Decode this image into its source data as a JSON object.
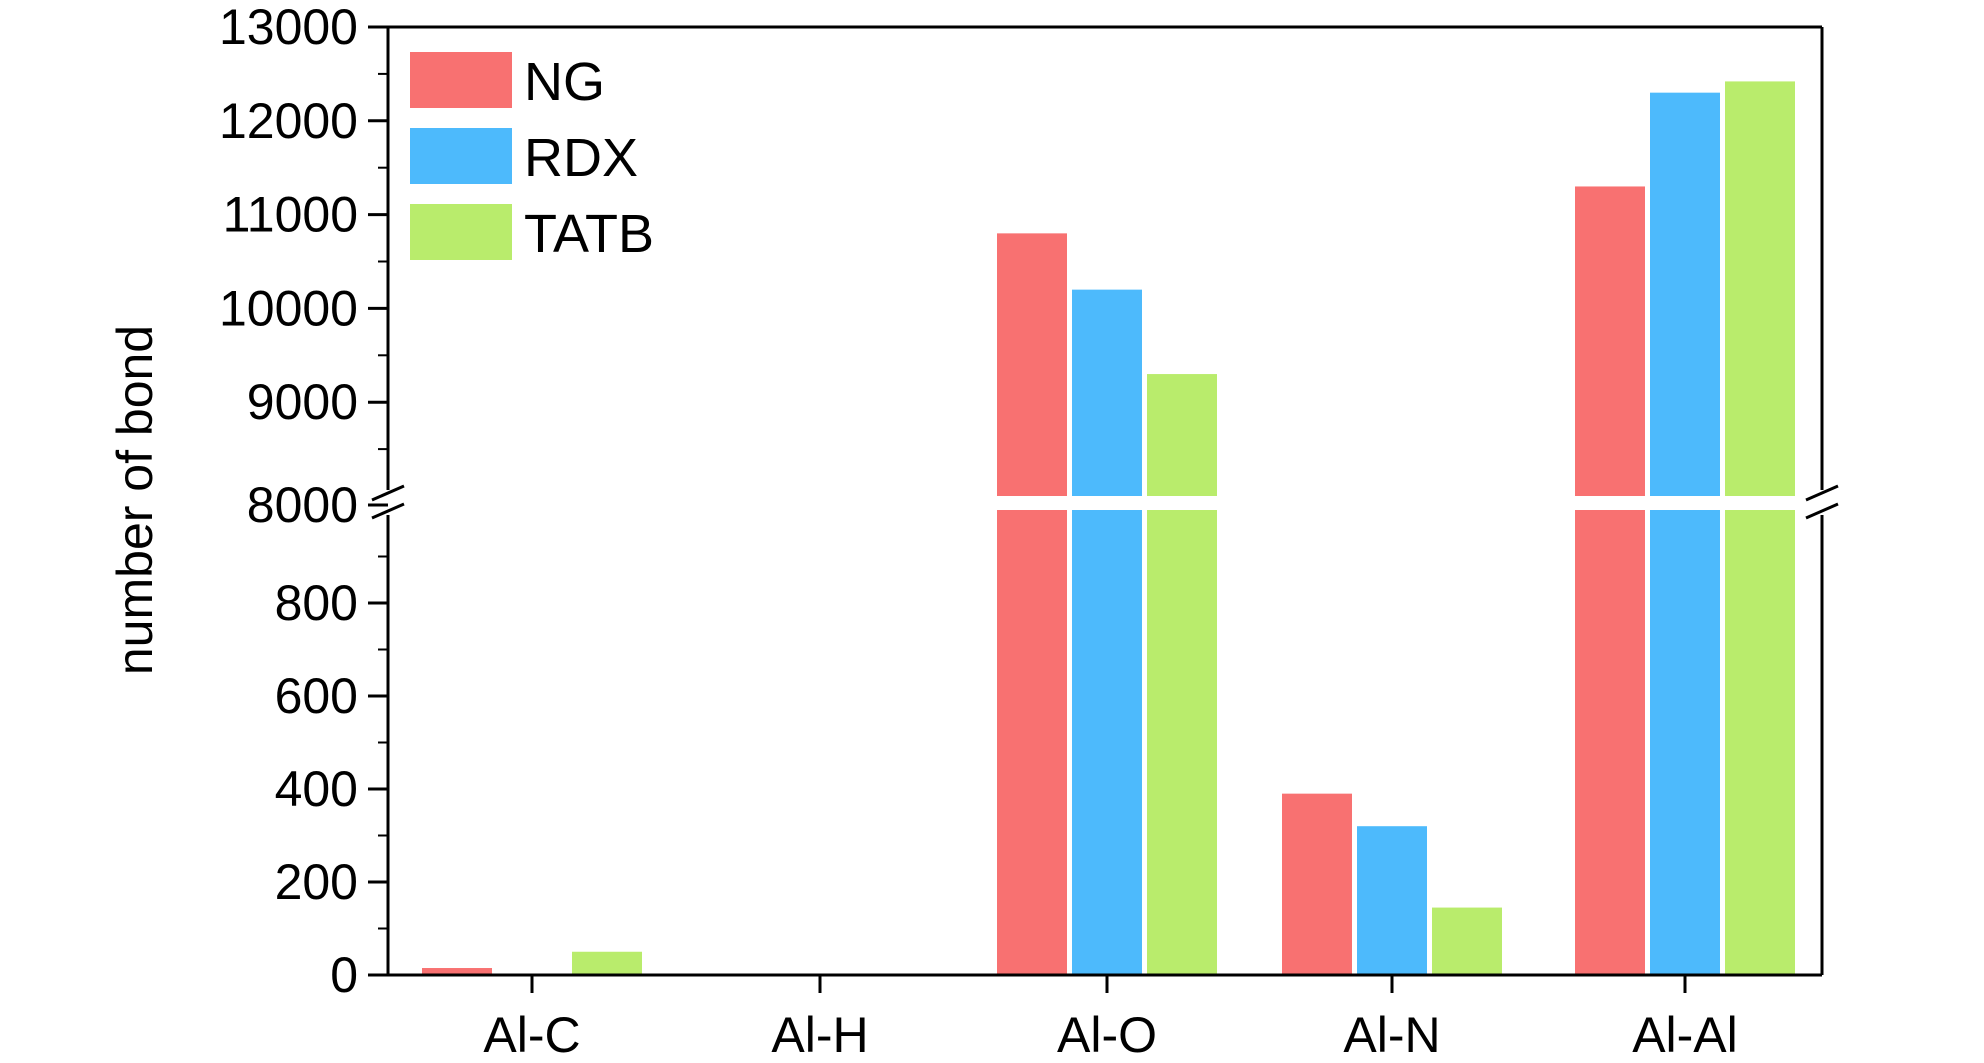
{
  "chart_data": {
    "type": "bar",
    "ylabel": "number of bond",
    "xlabel": "",
    "categories": [
      "Al-C",
      "Al-H",
      "Al-O",
      "Al-N",
      "Al-Al"
    ],
    "series": [
      {
        "name": "NG",
        "color": "#f87171",
        "values": [
          15,
          0,
          10800,
          390,
          11300
        ]
      },
      {
        "name": "RDX",
        "color": "#4dbafc",
        "values": [
          0,
          0,
          10200,
          320,
          12300
        ]
      },
      {
        "name": "TATB",
        "color": "#b9ec6c",
        "values": [
          50,
          0,
          9300,
          145,
          12420
        ]
      }
    ],
    "y_axis": {
      "broken": true,
      "lower_segment": {
        "range": [
          0,
          1000
        ],
        "ticks": [
          "0",
          "200",
          "400",
          "600",
          "800"
        ]
      },
      "upper_segment": {
        "range": [
          8000,
          13000
        ],
        "ticks": [
          "8000",
          "9000",
          "10000",
          "11000",
          "12000",
          "13000"
        ]
      }
    },
    "legend": {
      "position": "top-left"
    },
    "grid": false
  }
}
